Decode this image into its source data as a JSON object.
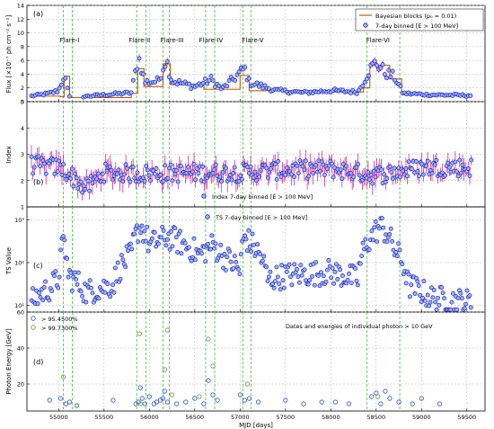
{
  "chart_data": [
    {
      "type": "scatter",
      "panel_label": "(a)",
      "ylabel": "Flux [×10⁻⁷ ph cm⁻² s⁻¹]",
      "xlim": [
        54650,
        59700
      ],
      "ylim": [
        0,
        14
      ],
      "yticks": [
        0,
        2,
        4,
        6,
        8,
        10,
        12,
        14
      ],
      "grid": true,
      "legend": {
        "position": "top-right",
        "entries": [
          "Bayesian blocks (p₀ = 0.01)",
          "7-day binned [E > 100 MeV]"
        ]
      },
      "annotations": [
        "Flare-I",
        "Flare-II",
        "Flare-III",
        "Flare-IV",
        "Flare-V",
        "Flare-VI"
      ],
      "annotation_x": [
        55120,
        55890,
        56250,
        56680,
        57140,
        58520
      ],
      "bayesian_blocks": [
        [
          54690,
          0.8
        ],
        [
          55020,
          0.7
        ],
        [
          55060,
          3.7
        ],
        [
          55120,
          0.6
        ],
        [
          55800,
          1.2
        ],
        [
          55870,
          4.8
        ],
        [
          55940,
          2.2
        ],
        [
          56150,
          5.5
        ],
        [
          56230,
          2.5
        ],
        [
          56600,
          1.8
        ],
        [
          57000,
          3.8
        ],
        [
          57100,
          1.6
        ],
        [
          57900,
          1.4
        ],
        [
          58360,
          2.0
        ],
        [
          58430,
          5.3
        ],
        [
          58650,
          3.3
        ],
        [
          58780,
          1.0
        ],
        [
          59500,
          1.0
        ]
      ],
      "flux_anchors": [
        [
          54700,
          0.8
        ],
        [
          54900,
          1.2
        ],
        [
          55000,
          1.6
        ],
        [
          55060,
          3.9
        ],
        [
          55100,
          1.5
        ],
        [
          55120,
          0.6
        ],
        [
          55800,
          1.3
        ],
        [
          55880,
          6.5
        ],
        [
          55950,
          2.8
        ],
        [
          56100,
          3.0
        ],
        [
          56180,
          6.2
        ],
        [
          56250,
          3.0
        ],
        [
          56500,
          2.2
        ],
        [
          56680,
          3.2
        ],
        [
          56800,
          1.8
        ],
        [
          57050,
          4.8
        ],
        [
          57100,
          2.8
        ],
        [
          57400,
          1.6
        ],
        [
          57700,
          1.3
        ],
        [
          58000,
          1.6
        ],
        [
          58300,
          1.4
        ],
        [
          58420,
          4.5
        ],
        [
          58500,
          5.7
        ],
        [
          58600,
          4.2
        ],
        [
          58700,
          3.6
        ],
        [
          58800,
          1.2
        ],
        [
          59100,
          1.0
        ],
        [
          59500,
          0.9
        ]
      ]
    },
    {
      "type": "scatter",
      "panel_label": "(b)",
      "ylabel": "Index",
      "ylim": [
        1,
        5
      ],
      "yticks": [
        1,
        2,
        3,
        4,
        5
      ],
      "grid": true,
      "legend": {
        "position": "bottom-center",
        "entries": [
          "Index 7-day binned [E > 100 MeV]"
        ]
      },
      "index_anchors": [
        [
          54700,
          2.6
        ],
        [
          55000,
          2.5
        ],
        [
          55100,
          2.3
        ],
        [
          55300,
          1.7
        ],
        [
          55500,
          2.3
        ],
        [
          55900,
          2.25
        ],
        [
          56500,
          2.3
        ],
        [
          57000,
          2.3
        ],
        [
          57500,
          2.4
        ],
        [
          58000,
          2.45
        ],
        [
          58500,
          2.2
        ],
        [
          59000,
          2.5
        ],
        [
          59500,
          2.5
        ]
      ]
    },
    {
      "type": "scatter",
      "panel_label": "(c)",
      "ylabel": "TS Value",
      "yscale": "log",
      "ylim": [
        7,
        2000
      ],
      "yticks": [
        10,
        100,
        1000
      ],
      "ytick_labels": [
        "10¹",
        "10²",
        "10³"
      ],
      "grid": true,
      "legend": {
        "position": "top-center",
        "entries": [
          "TS 7-day binned [E > 100 MeV]"
        ]
      },
      "ts_anchors": [
        [
          54700,
          12
        ],
        [
          54900,
          25
        ],
        [
          55000,
          40
        ],
        [
          55060,
          300
        ],
        [
          55100,
          50
        ],
        [
          55300,
          20
        ],
        [
          55600,
          30
        ],
        [
          55800,
          150
        ],
        [
          55900,
          700
        ],
        [
          56000,
          250
        ],
        [
          56200,
          400
        ],
        [
          56400,
          250
        ],
        [
          56550,
          150
        ],
        [
          56700,
          250
        ],
        [
          56800,
          150
        ],
        [
          57000,
          60
        ],
        [
          57050,
          400
        ],
        [
          57100,
          300
        ],
        [
          57300,
          40
        ],
        [
          57500,
          50
        ],
        [
          58000,
          60
        ],
        [
          58300,
          40
        ],
        [
          58450,
          400
        ],
        [
          58550,
          700
        ],
        [
          58700,
          200
        ],
        [
          58850,
          30
        ],
        [
          59100,
          15
        ],
        [
          59500,
          12
        ]
      ]
    },
    {
      "type": "scatter",
      "panel_label": "(d)",
      "ylabel": "Photon Energy [GeV]",
      "xlabel": "MJD [days]",
      "ylim": [
        5,
        60
      ],
      "yticks": [
        20,
        40,
        60
      ],
      "xticks": [
        55000,
        55500,
        56000,
        56500,
        57000,
        57500,
        58000,
        58500,
        59000,
        59500
      ],
      "grid": true,
      "legend": {
        "position": "top-left",
        "entries": [
          "> 95.4500%",
          "> 99.7300%"
        ]
      },
      "annotation": "Dates and energies of individual photon > 10 GeV",
      "photons_hi_conf": [
        [
          54900,
          11
        ],
        [
          55020,
          12
        ],
        [
          55080,
          9
        ],
        [
          55120,
          10
        ],
        [
          55200,
          8
        ],
        [
          55600,
          11
        ],
        [
          55850,
          9
        ],
        [
          55880,
          10
        ],
        [
          55900,
          18
        ],
        [
          55920,
          12
        ],
        [
          55950,
          9
        ],
        [
          56000,
          13
        ],
        [
          56050,
          9
        ],
        [
          56080,
          10
        ],
        [
          56120,
          11
        ],
        [
          56150,
          12
        ],
        [
          56170,
          16
        ],
        [
          56200,
          10
        ],
        [
          56300,
          9
        ],
        [
          56400,
          10
        ],
        [
          56500,
          12
        ],
        [
          56600,
          9
        ],
        [
          56650,
          22
        ],
        [
          56700,
          14
        ],
        [
          56750,
          11
        ],
        [
          57000,
          14
        ],
        [
          57050,
          11
        ],
        [
          57100,
          12
        ],
        [
          57200,
          10
        ],
        [
          57500,
          11
        ],
        [
          57700,
          9
        ],
        [
          57900,
          10
        ],
        [
          58050,
          10
        ],
        [
          58200,
          9
        ],
        [
          58450,
          13
        ],
        [
          58500,
          15
        ],
        [
          58550,
          9
        ],
        [
          58600,
          16
        ],
        [
          58650,
          12
        ],
        [
          58750,
          10
        ],
        [
          58900,
          9
        ],
        [
          59000,
          12
        ],
        [
          59200,
          9
        ]
      ],
      "photons_lo_conf": [
        [
          55890,
          48
        ],
        [
          56200,
          50
        ],
        [
          56650,
          45
        ],
        [
          56700,
          30
        ],
        [
          55050,
          24
        ],
        [
          56170,
          28
        ],
        [
          55900,
          9
        ],
        [
          56250,
          14
        ],
        [
          57080,
          20
        ],
        [
          56550,
          13
        ],
        [
          58520,
          13
        ]
      ]
    }
  ],
  "colors": {
    "marker_edge": "#1e1ed2",
    "marker_fill": "#9db8e8",
    "error_bar": "#c71585",
    "bayes_line": "#c05a00",
    "flare_line": "#3dbf3d",
    "photon_hi": "#2b57c8",
    "photon_lo": "#6a9a3c"
  }
}
